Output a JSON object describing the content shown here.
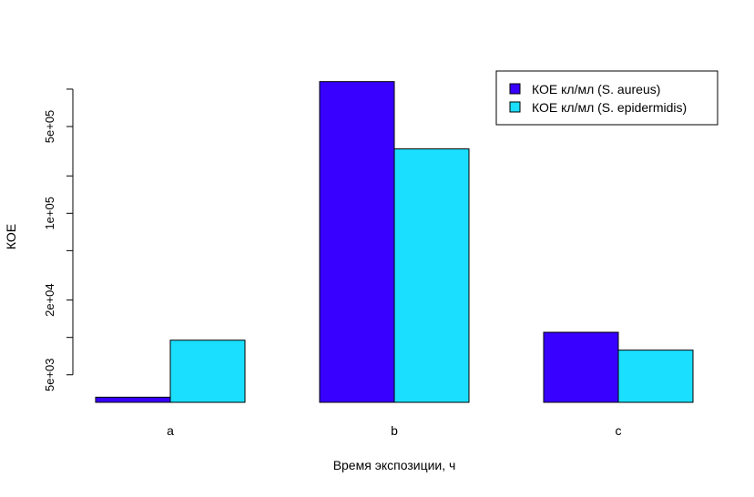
{
  "chart_data": {
    "type": "bar",
    "title": "",
    "xlabel": "Время экспозиции, ч",
    "ylabel": "КОЕ",
    "y_scale": "log",
    "ylim": [
      3000,
      1400000
    ],
    "categories": [
      "a",
      "b",
      "c"
    ],
    "series": [
      {
        "name": "КОЕ кл/мл (S. aureus)",
        "color": "#3700ff",
        "values": [
          3300,
          1150000,
          11000
        ]
      },
      {
        "name": "КОЕ кл/мл (S. epidermidis)",
        "color": "#1adfff",
        "values": [
          9500,
          330000,
          7900
        ]
      }
    ],
    "y_ticks": [
      {
        "value": 5000,
        "label": "5e+03"
      },
      {
        "value": 20000,
        "label": "2e+04"
      },
      {
        "value": 100000,
        "label": "1e+05"
      },
      {
        "value": 500000,
        "label": "5e+05"
      }
    ],
    "y_minor_ticks": [
      2000,
      10000,
      50000,
      200000,
      1000000
    ],
    "legend_position": "top-right",
    "grid": false
  }
}
